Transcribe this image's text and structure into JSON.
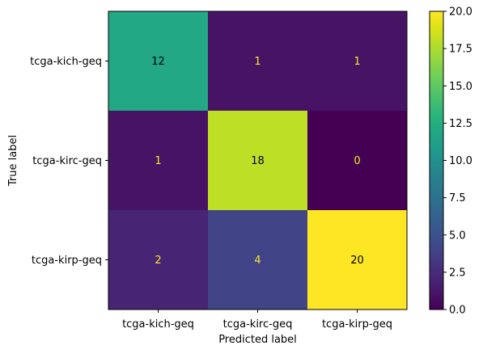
{
  "chart_data": {
    "type": "heatmap",
    "title": "",
    "xlabel": "Predicted label",
    "ylabel": "True label",
    "x_categories": [
      "tcga-kich-geq",
      "tcga-kirc-geq",
      "tcga-kirp-geq"
    ],
    "y_categories": [
      "tcga-kich-geq",
      "tcga-kirc-geq",
      "tcga-kirp-geq"
    ],
    "values": [
      [
        12,
        1,
        1
      ],
      [
        1,
        18,
        0
      ],
      [
        2,
        4,
        20
      ]
    ],
    "colormap": "viridis",
    "value_range": [
      0,
      20
    ],
    "colorbar_ticks": [
      "0.0",
      "2.5",
      "5.0",
      "7.5",
      "10.0",
      "12.5",
      "15.0",
      "17.5",
      "20.0"
    ],
    "text_color_on_dark": "#fde725",
    "text_color_on_light": "#000000",
    "grid": false
  }
}
